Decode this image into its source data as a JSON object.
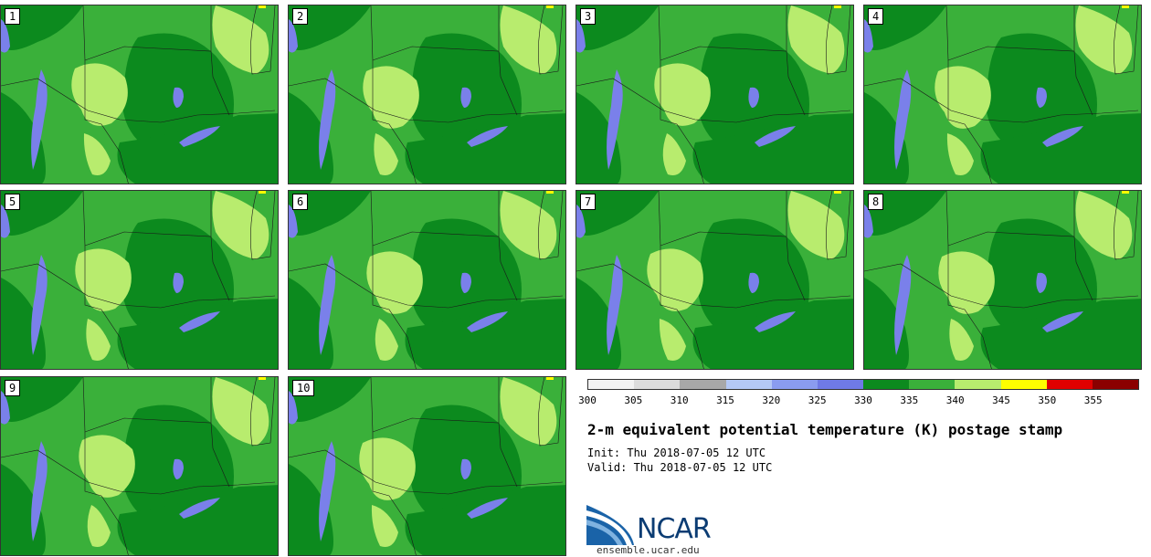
{
  "title": "2-m equivalent potential temperature (K) postage stamp",
  "init": "Init: Thu 2018-07-05 12 UTC",
  "valid": "Valid: Thu 2018-07-05 12 UTC",
  "logo_text": "NCAR",
  "url": "ensemble.ucar.edu",
  "members": [
    "1",
    "2",
    "3",
    "4",
    "5",
    "6",
    "7",
    "8",
    "9",
    "10"
  ],
  "colorbar": {
    "ticks": [
      "300",
      "305",
      "310",
      "315",
      "320",
      "325",
      "330",
      "335",
      "340",
      "345",
      "350",
      "355"
    ],
    "colors": [
      "#f2f2f2",
      "#dcdcdc",
      "#a8a8a8",
      "#b4c8f5",
      "#8a9cf0",
      "#6f7ae6",
      "#0c8a1e",
      "#3ab03a",
      "#b8ec6e",
      "#ffff00",
      "#e00000",
      "#8b0000"
    ]
  },
  "colors": {
    "dark_green": "#0c8a1e",
    "mid_green": "#3ab03a",
    "light_green": "#b8ec6e",
    "blue": "#7a80ea",
    "yellow": "#ffff00"
  }
}
